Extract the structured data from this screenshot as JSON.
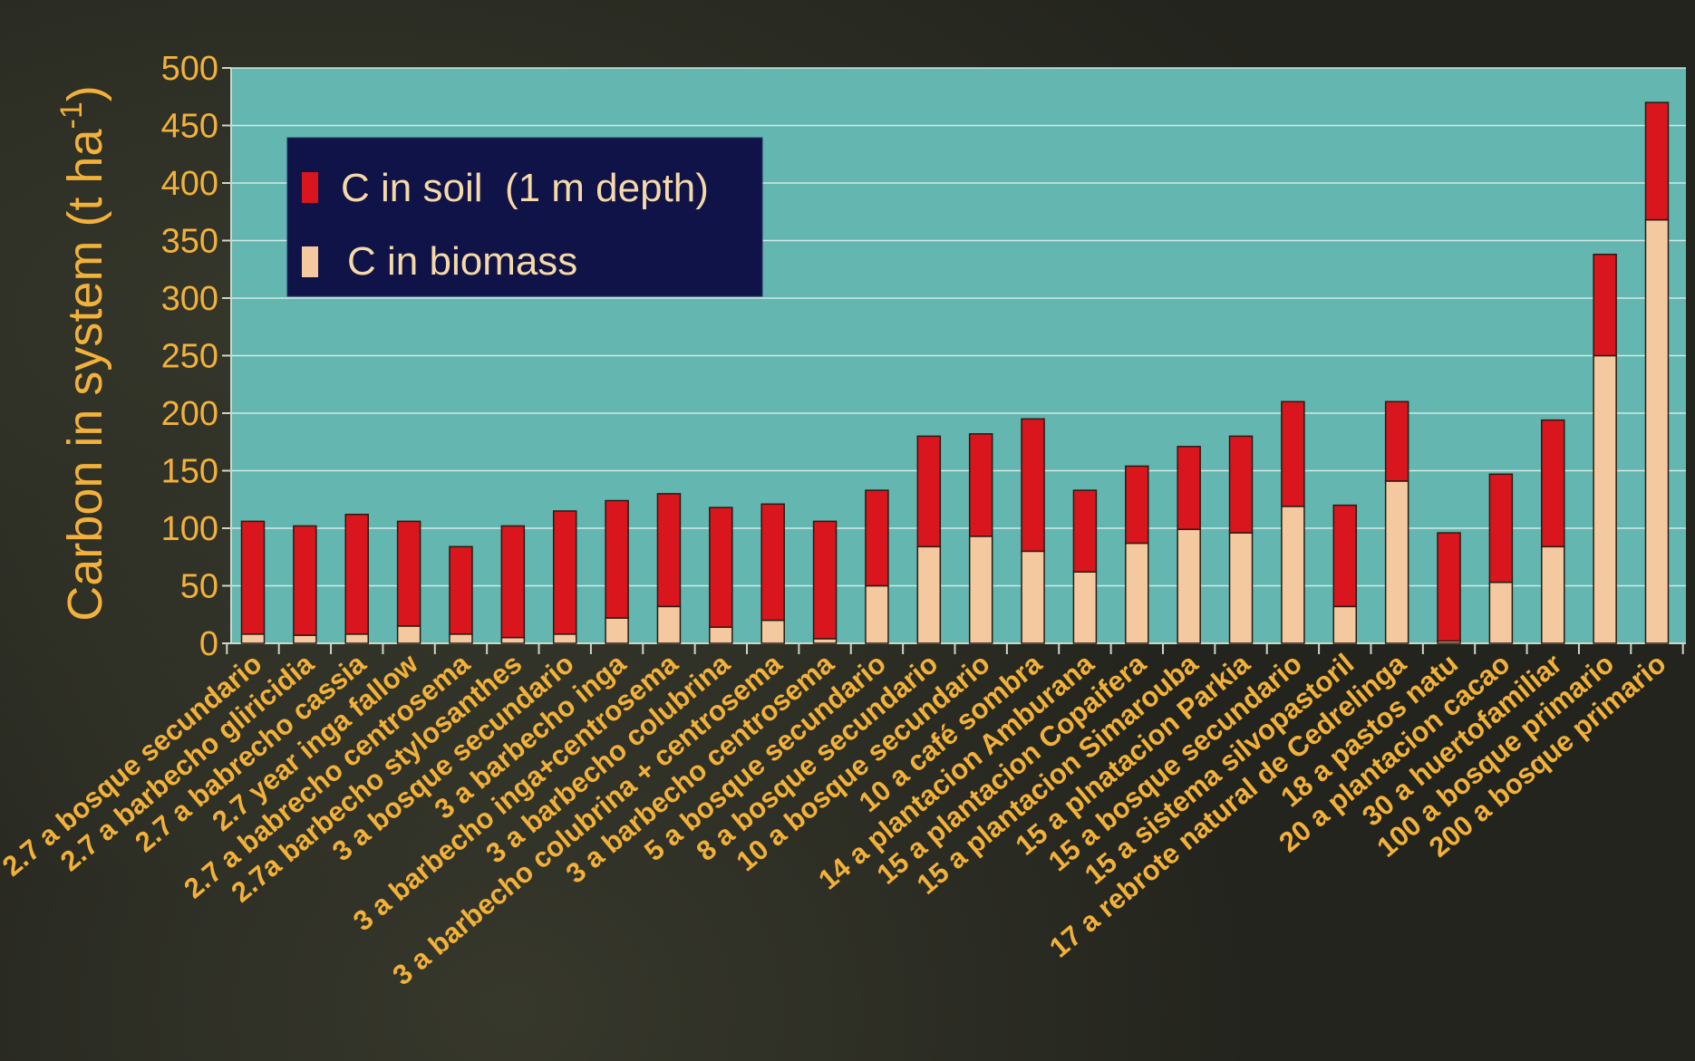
{
  "chart_data": {
    "type": "bar",
    "stacked": true,
    "ylabel": "Carbon in system (t ha",
    "ylabel_exponent": "-1",
    "ylabel_close": ")",
    "ylim": [
      0,
      500
    ],
    "yticks": [
      "0",
      "50",
      "100",
      "150",
      "200",
      "250",
      "300",
      "350",
      "400",
      "450",
      "500"
    ],
    "grid": true,
    "legend_position": "top-left",
    "categories": [
      "2.7 a bosque secundario",
      "2.7 a barbecho gliricidia",
      "2.7 a babrecho cassia",
      "2.7 year inga fallow",
      "2.7 a babrecho centrosema",
      "2.7a barbecho stylosanthes",
      "3 a bosque secundario",
      "3 a barbecho inga",
      "3 a barbecho inga+centrosema",
      "3 a barbecho colubrina",
      "3 a barbecho colubrina + centrosema",
      "3 a barbecho centrosema",
      "5 a bosque secundario",
      "8 a bosque secundario",
      "10 a bosque secundario",
      "10 a café sombra",
      "14 a plantacion Amburana",
      "15 a plantacion Copaifera",
      "15 a plantacion Simarouba",
      "15 a plnatacion Parkia",
      "15 a bosque secundario",
      "15 a sistema silvopastoril",
      "17 a rebrote natural de Cedrelinga",
      "18 a pastos natu",
      "20 a plantacion cacao",
      "30 a huertofamiliar",
      "100 a bosque primario",
      "200 a bosque primario"
    ],
    "series": [
      {
        "name": "C in biomass",
        "color": "#f5c9a0",
        "values": [
          8,
          7,
          8,
          15,
          8,
          5,
          8,
          22,
          32,
          14,
          20,
          4,
          50,
          84,
          93,
          80,
          62,
          87,
          99,
          96,
          119,
          32,
          141,
          2,
          53,
          84,
          250,
          368
        ]
      },
      {
        "name": "C in soil  (1 m depth)",
        "color": "#d9151d",
        "values": [
          98,
          95,
          104,
          91,
          76,
          97,
          107,
          102,
          98,
          104,
          101,
          102,
          83,
          96,
          89,
          115,
          71,
          67,
          72,
          84,
          91,
          88,
          69,
          94,
          94,
          110,
          88,
          102
        ]
      }
    ],
    "colors": {
      "plot_background": "#63b7b0",
      "axis": "#cdd6c8",
      "text": "#f2b13a",
      "legend_background": "#101348"
    }
  }
}
